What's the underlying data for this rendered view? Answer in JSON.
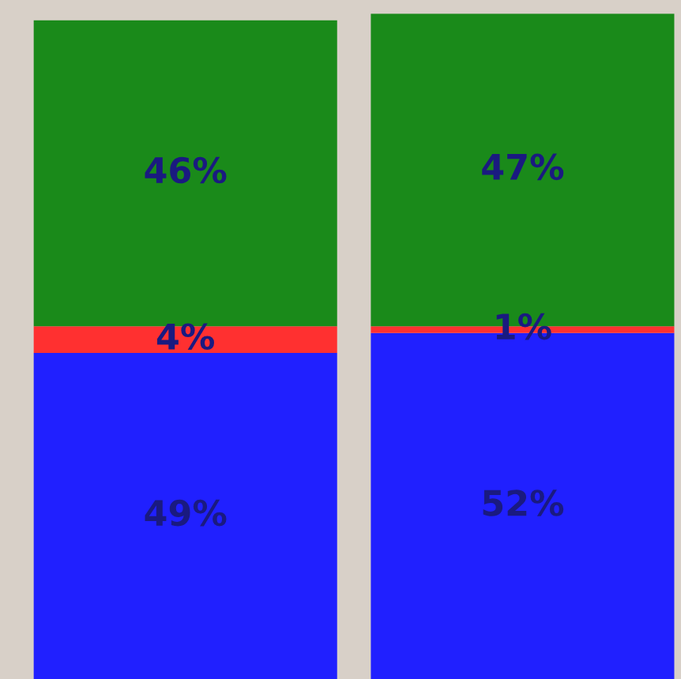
{
  "chart_data": {
    "type": "bar",
    "stacked": true,
    "categories": [
      null,
      null
    ],
    "series": [
      {
        "color": "#2020ff",
        "values": [
          49,
          52
        ],
        "value_labels": [
          "49%",
          "52%"
        ]
      },
      {
        "color": "#ff3030",
        "values": [
          4,
          1
        ],
        "value_labels": [
          "4%",
          "1%"
        ]
      },
      {
        "color": "#1a8a1a",
        "values": [
          46,
          47
        ],
        "value_labels": [
          "46%",
          "47%"
        ]
      }
    ]
  }
}
